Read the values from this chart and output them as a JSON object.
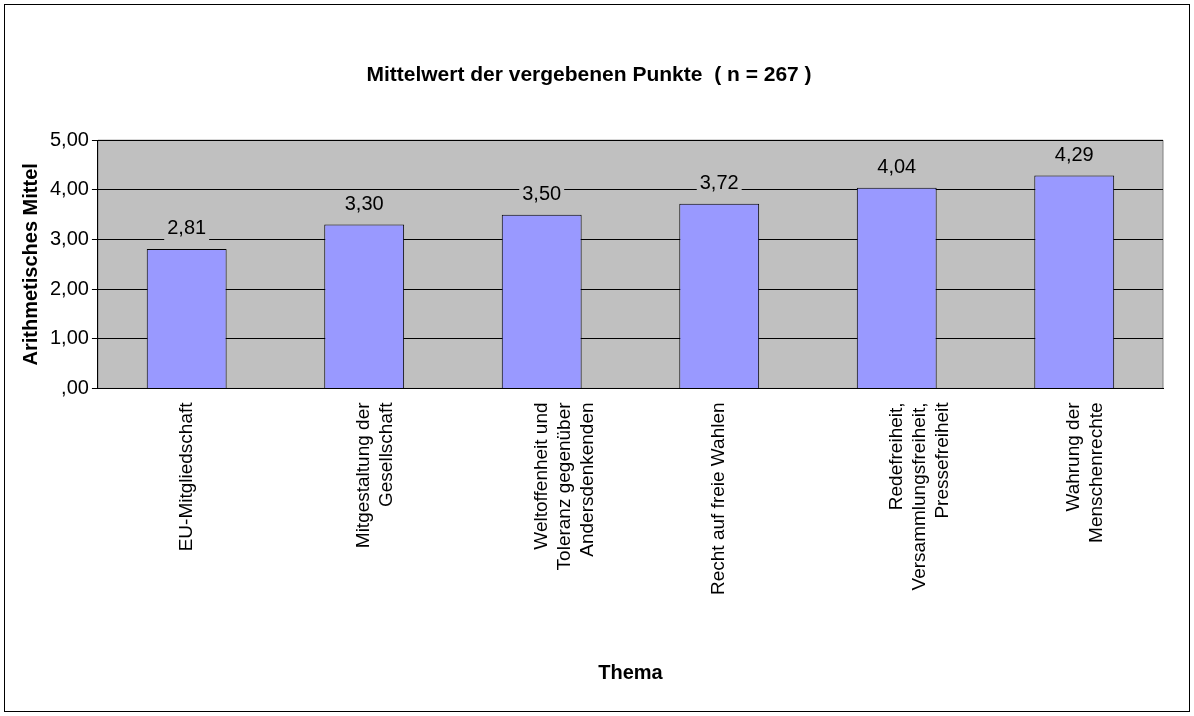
{
  "chart_data": {
    "type": "bar",
    "title": "Mittelwert der vergebenen Punkte  ( n = 267 )",
    "xlabel": "Thema",
    "ylabel": "Arithmetisches Mittel",
    "categories": [
      "EU-Mitgliedschaft",
      "Mitgestaltung der\nGesellschaft",
      "Weltoffenheit und\nToleranz gegenüber\nAndersdenkenden",
      "Recht auf freie Wahlen",
      "Redefreiheit,\nVersammlungsfreiheit,\nPressefreiheit",
      "Wahrung der\nMenschenrechte"
    ],
    "values": [
      2.81,
      3.3,
      3.5,
      3.72,
      4.04,
      4.29
    ],
    "value_labels": [
      "2,81",
      "3,30",
      "3,50",
      "3,72",
      "4,04",
      "4,29"
    ],
    "color": "#9999ff",
    "ylim": [
      0,
      5
    ],
    "yticks": [
      {
        "value": 0,
        "label": ",00"
      },
      {
        "value": 1,
        "label": "1,00"
      },
      {
        "value": 2,
        "label": "2,00"
      },
      {
        "value": 3,
        "label": "3,00"
      },
      {
        "value": 4,
        "label": "4,00"
      },
      {
        "value": 5,
        "label": "5,00"
      }
    ],
    "grid": "y",
    "legend": false
  }
}
